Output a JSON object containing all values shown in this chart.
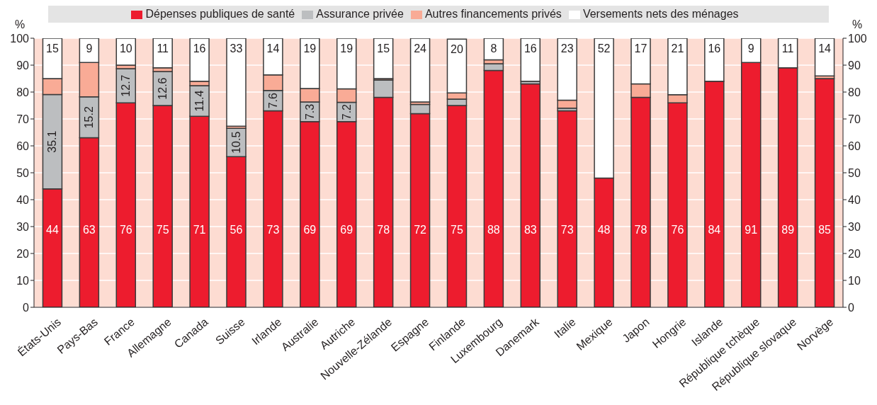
{
  "chart_data": {
    "type": "bar",
    "stacked": true,
    "ylabel": "%",
    "y2label": "%",
    "categories": [
      "États-Unis",
      "Pays-Bas",
      "France",
      "Allemagne",
      "Canada",
      "Suisse",
      "Irlande",
      "Australie",
      "Autriche",
      "Nouvelle-Zélande",
      "Espagne",
      "Finlande",
      "Luxembourg",
      "Danemark",
      "Italie",
      "Mexique",
      "Japon",
      "Hongrie",
      "Islande",
      "République tchèque",
      "République slovaque",
      "Norvège"
    ],
    "series": [
      {
        "name": "Dépenses publiques de santé",
        "color": "#ed1c2e",
        "values": [
          44,
          63,
          76,
          75,
          71,
          56,
          73,
          69,
          69,
          78,
          72,
          75,
          88,
          83,
          73,
          48,
          78,
          76,
          84,
          91,
          89,
          85
        ],
        "value_labels": [
          "44",
          "63",
          "76",
          "75",
          "71",
          "56",
          "73",
          "69",
          "69",
          "78",
          "72",
          "75",
          "88",
          "83",
          "73",
          "48",
          "78",
          "76",
          "84",
          "91",
          "89",
          "85"
        ]
      },
      {
        "name": "Assurance privée",
        "color": "#bcbec0",
        "values": [
          35.1,
          15.2,
          12.7,
          12.6,
          11.4,
          10.5,
          7.6,
          7.3,
          7.2,
          6.5,
          3.4,
          2.4,
          2.5,
          1,
          1,
          0,
          0,
          0,
          0,
          0,
          0,
          0
        ],
        "value_labels": [
          "35.1",
          "15.2",
          "12.7",
          "12.6",
          "11.4",
          "10.5",
          "7.6",
          "7.3",
          "7.2",
          null,
          null,
          null,
          null,
          null,
          null,
          null,
          null,
          null,
          null,
          null,
          null,
          null
        ]
      },
      {
        "name": "Autres financements privés",
        "color": "#f9ab96",
        "values": [
          5.9,
          12.8,
          1.3,
          1.4,
          1.6,
          0.8,
          5.8,
          5,
          5,
          0.5,
          0.9,
          2.3,
          1.5,
          0,
          3,
          0,
          5,
          3,
          0,
          0,
          0,
          1
        ]
      },
      {
        "name": "Versements nets des ménages",
        "color": "#ffffff",
        "values": [
          15,
          9,
          10,
          11,
          16,
          33,
          14,
          19,
          19,
          15,
          24,
          20,
          8,
          16,
          23,
          52,
          17,
          21,
          16,
          9,
          11,
          14
        ],
        "value_labels": [
          "15",
          "9",
          "10",
          "11",
          "16",
          "33",
          "14",
          "19",
          "19",
          "15",
          "24",
          "20",
          "8",
          "16",
          "23",
          "52",
          "17",
          "21",
          "16",
          "9",
          "11",
          "14"
        ]
      }
    ],
    "ylim": [
      0,
      100
    ],
    "yticks": [
      0,
      10,
      20,
      30,
      40,
      50,
      60,
      70,
      80,
      90,
      100
    ],
    "y2lim": [
      0,
      100
    ],
    "y2ticks": [
      0,
      10,
      20,
      30,
      40,
      50,
      60,
      70,
      80,
      90,
      100
    ],
    "grid": "y",
    "legend": "top"
  }
}
